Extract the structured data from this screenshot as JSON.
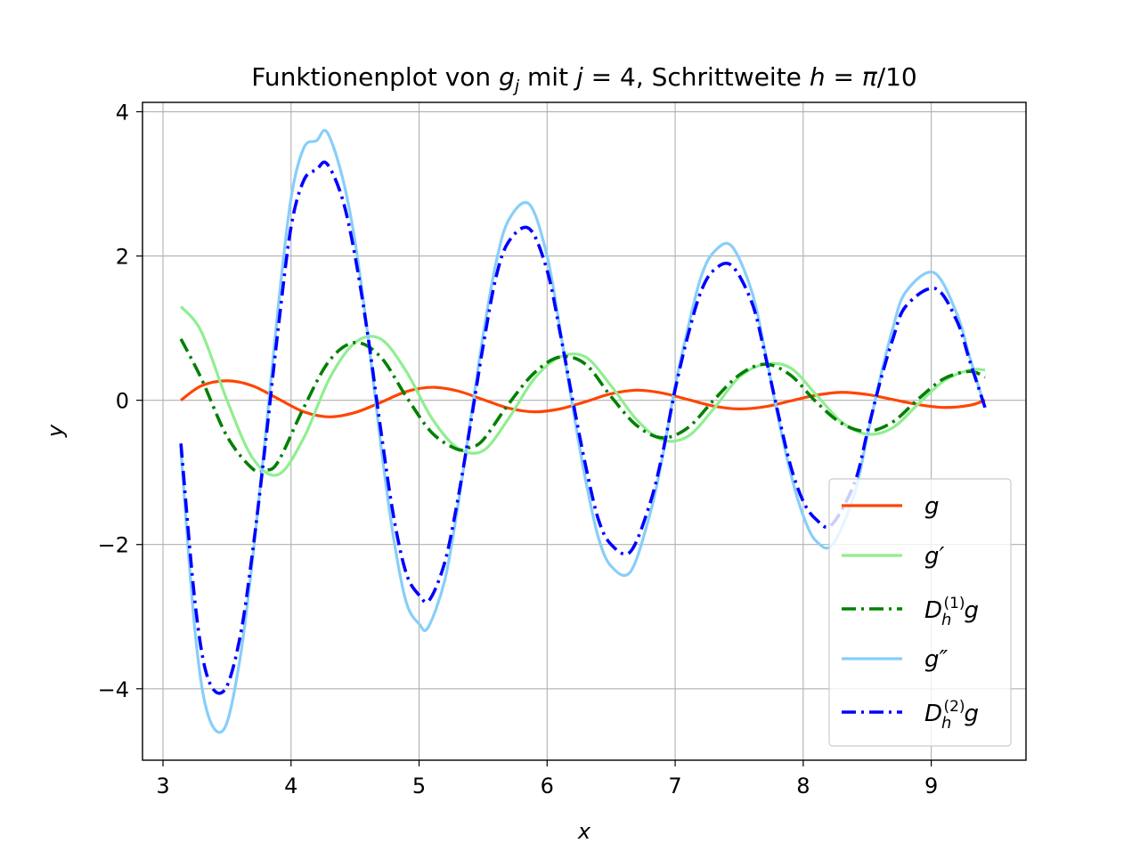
{
  "chart_data": {
    "type": "line",
    "title": "Funktionenplot von g_j mit j = 4, Schrittweite h = π/10",
    "title_parts": [
      "Funktionenplot von ",
      "g",
      "j",
      " mit ",
      "j",
      " = 4, Schrittweite ",
      "h",
      " = ",
      "π",
      "/10"
    ],
    "xlabel": "x",
    "ylabel": "y",
    "xlim": [
      2.84,
      9.74
    ],
    "ylim": [
      -4.99,
      4.13
    ],
    "xticks": [
      3,
      4,
      5,
      6,
      7,
      8,
      9
    ],
    "yticks": [
      -4,
      -2,
      0,
      2,
      4
    ],
    "ytick_labels": [
      "−4",
      "−2",
      "0",
      "2",
      "4"
    ],
    "grid": true,
    "legend_position": "lower right",
    "x_range": [
      3.14,
      9.42
    ],
    "series": [
      {
        "name": "g",
        "color": "#ff4500",
        "style": "solid",
        "x": [
          3.14,
          3.3,
          3.5,
          3.7,
          3.9,
          4.1,
          4.3,
          4.5,
          4.7,
          4.9,
          5.1,
          5.3,
          5.5,
          5.7,
          5.9,
          6.1,
          6.3,
          6.5,
          6.7,
          6.9,
          7.1,
          7.3,
          7.5,
          7.7,
          7.9,
          8.1,
          8.3,
          8.5,
          8.7,
          8.9,
          9.1,
          9.3,
          9.42
        ],
        "y": [
          0.0,
          0.2,
          0.27,
          0.2,
          0.02,
          -0.16,
          -0.23,
          -0.17,
          -0.03,
          0.12,
          0.18,
          0.13,
          0.01,
          -0.11,
          -0.16,
          -0.12,
          -0.02,
          0.09,
          0.14,
          0.1,
          0.01,
          -0.08,
          -0.12,
          -0.09,
          -0.01,
          0.07,
          0.11,
          0.08,
          0.01,
          -0.06,
          -0.1,
          -0.07,
          0.0
        ]
      },
      {
        "name": "g′",
        "color": "#90ee90",
        "style": "solid",
        "x": [
          3.14,
          3.3,
          3.5,
          3.7,
          3.9,
          4.1,
          4.3,
          4.5,
          4.7,
          4.9,
          5.1,
          5.3,
          5.5,
          5.7,
          5.9,
          6.1,
          6.3,
          6.5,
          6.7,
          6.9,
          7.1,
          7.3,
          7.5,
          7.7,
          7.9,
          8.1,
          8.3,
          8.5,
          8.7,
          8.9,
          9.1,
          9.3,
          9.42
        ],
        "y": [
          1.3,
          0.95,
          0.0,
          -0.8,
          -1.03,
          -0.52,
          0.3,
          0.8,
          0.85,
          0.4,
          -0.25,
          -0.66,
          -0.7,
          -0.25,
          0.3,
          0.6,
          0.6,
          0.2,
          -0.27,
          -0.55,
          -0.5,
          -0.12,
          0.32,
          0.5,
          0.45,
          0.08,
          -0.3,
          -0.47,
          -0.38,
          -0.05,
          0.27,
          0.42,
          0.42
        ]
      },
      {
        "name": "D_h^(1)g",
        "name_parts": [
          "D",
          "h",
          "(1)",
          "g"
        ],
        "color": "#008000",
        "style": "dashdot",
        "x": [
          3.14,
          3.3,
          3.5,
          3.7,
          3.8,
          3.9,
          4.1,
          4.3,
          4.5,
          4.7,
          4.9,
          5.1,
          5.3,
          5.4,
          5.5,
          5.7,
          5.9,
          6.1,
          6.3,
          6.5,
          6.7,
          6.9,
          7.1,
          7.3,
          7.5,
          7.7,
          7.9,
          8.1,
          8.3,
          8.5,
          8.7,
          8.9,
          9.1,
          9.3,
          9.42
        ],
        "y": [
          0.85,
          0.3,
          -0.5,
          -0.95,
          -0.97,
          -0.85,
          -0.1,
          0.55,
          0.8,
          0.6,
          0.05,
          -0.45,
          -0.68,
          -0.65,
          -0.55,
          -0.05,
          0.38,
          0.6,
          0.5,
          0.05,
          -0.35,
          -0.52,
          -0.38,
          0.0,
          0.35,
          0.5,
          0.35,
          -0.02,
          -0.32,
          -0.43,
          -0.3,
          0.02,
          0.3,
          0.4,
          0.32
        ]
      },
      {
        "name": "g″",
        "color": "#87cefa",
        "style": "solid",
        "x": [
          3.14,
          3.25,
          3.35,
          3.48,
          3.6,
          3.7,
          3.8,
          3.9,
          4.0,
          4.1,
          4.2,
          4.28,
          4.4,
          4.5,
          4.6,
          4.7,
          4.8,
          4.9,
          5.0,
          5.07,
          5.2,
          5.3,
          5.4,
          5.5,
          5.6,
          5.7,
          5.86,
          6.0,
          6.1,
          6.2,
          6.3,
          6.4,
          6.5,
          6.65,
          6.8,
          6.9,
          7.0,
          7.1,
          7.2,
          7.3,
          7.44,
          7.6,
          7.7,
          7.8,
          7.9,
          8.0,
          8.1,
          8.23,
          8.4,
          8.5,
          8.6,
          8.7,
          8.8,
          9.02,
          9.2,
          9.3,
          9.42
        ],
        "y": [
          -0.7,
          -3.2,
          -4.35,
          -4.55,
          -3.6,
          -2.2,
          -0.5,
          1.3,
          2.8,
          3.5,
          3.6,
          3.72,
          3.1,
          2.2,
          0.9,
          -0.6,
          -1.9,
          -2.8,
          -3.1,
          -3.15,
          -2.5,
          -1.5,
          -0.3,
          0.9,
          1.9,
          2.5,
          2.72,
          2.0,
          1.0,
          -0.1,
          -1.1,
          -1.9,
          -2.3,
          -2.38,
          -1.6,
          -0.8,
          0.2,
          1.0,
          1.7,
          2.05,
          2.14,
          1.5,
          0.7,
          -0.2,
          -1.0,
          -1.6,
          -1.95,
          -2.0,
          -1.3,
          -0.5,
          0.3,
          1.0,
          1.5,
          1.77,
          1.2,
          0.6,
          -0.1
        ]
      },
      {
        "name": "D_h^(2)g",
        "name_parts": [
          "D",
          "h",
          "(2)",
          "g"
        ],
        "color": "#0000ff",
        "style": "dashdot",
        "x": [
          3.14,
          3.25,
          3.35,
          3.48,
          3.6,
          3.7,
          3.8,
          3.9,
          4.0,
          4.1,
          4.2,
          4.28,
          4.4,
          4.5,
          4.6,
          4.7,
          4.8,
          4.9,
          5.0,
          5.08,
          5.2,
          5.3,
          5.4,
          5.5,
          5.6,
          5.7,
          5.86,
          6.0,
          6.1,
          6.2,
          6.3,
          6.4,
          6.5,
          6.65,
          6.8,
          6.9,
          7.0,
          7.1,
          7.2,
          7.3,
          7.44,
          7.6,
          7.7,
          7.8,
          7.9,
          8.0,
          8.1,
          8.22,
          8.4,
          8.5,
          8.6,
          8.7,
          8.8,
          9.03,
          9.2,
          9.3,
          9.42
        ],
        "y": [
          -0.6,
          -2.8,
          -3.85,
          -4.02,
          -3.3,
          -2.1,
          -0.6,
          1.0,
          2.4,
          3.05,
          3.2,
          3.28,
          2.8,
          2.0,
          0.9,
          -0.4,
          -1.6,
          -2.4,
          -2.7,
          -2.77,
          -2.25,
          -1.4,
          -0.35,
          0.75,
          1.7,
          2.2,
          2.38,
          1.8,
          0.95,
          0.0,
          -0.9,
          -1.65,
          -2.0,
          -2.1,
          -1.45,
          -0.75,
          0.15,
          0.9,
          1.5,
          1.8,
          1.87,
          1.35,
          0.65,
          -0.15,
          -0.9,
          -1.4,
          -1.65,
          -1.73,
          -1.15,
          -0.45,
          0.25,
          0.85,
          1.3,
          1.55,
          1.1,
          0.55,
          -0.1
        ]
      }
    ]
  }
}
